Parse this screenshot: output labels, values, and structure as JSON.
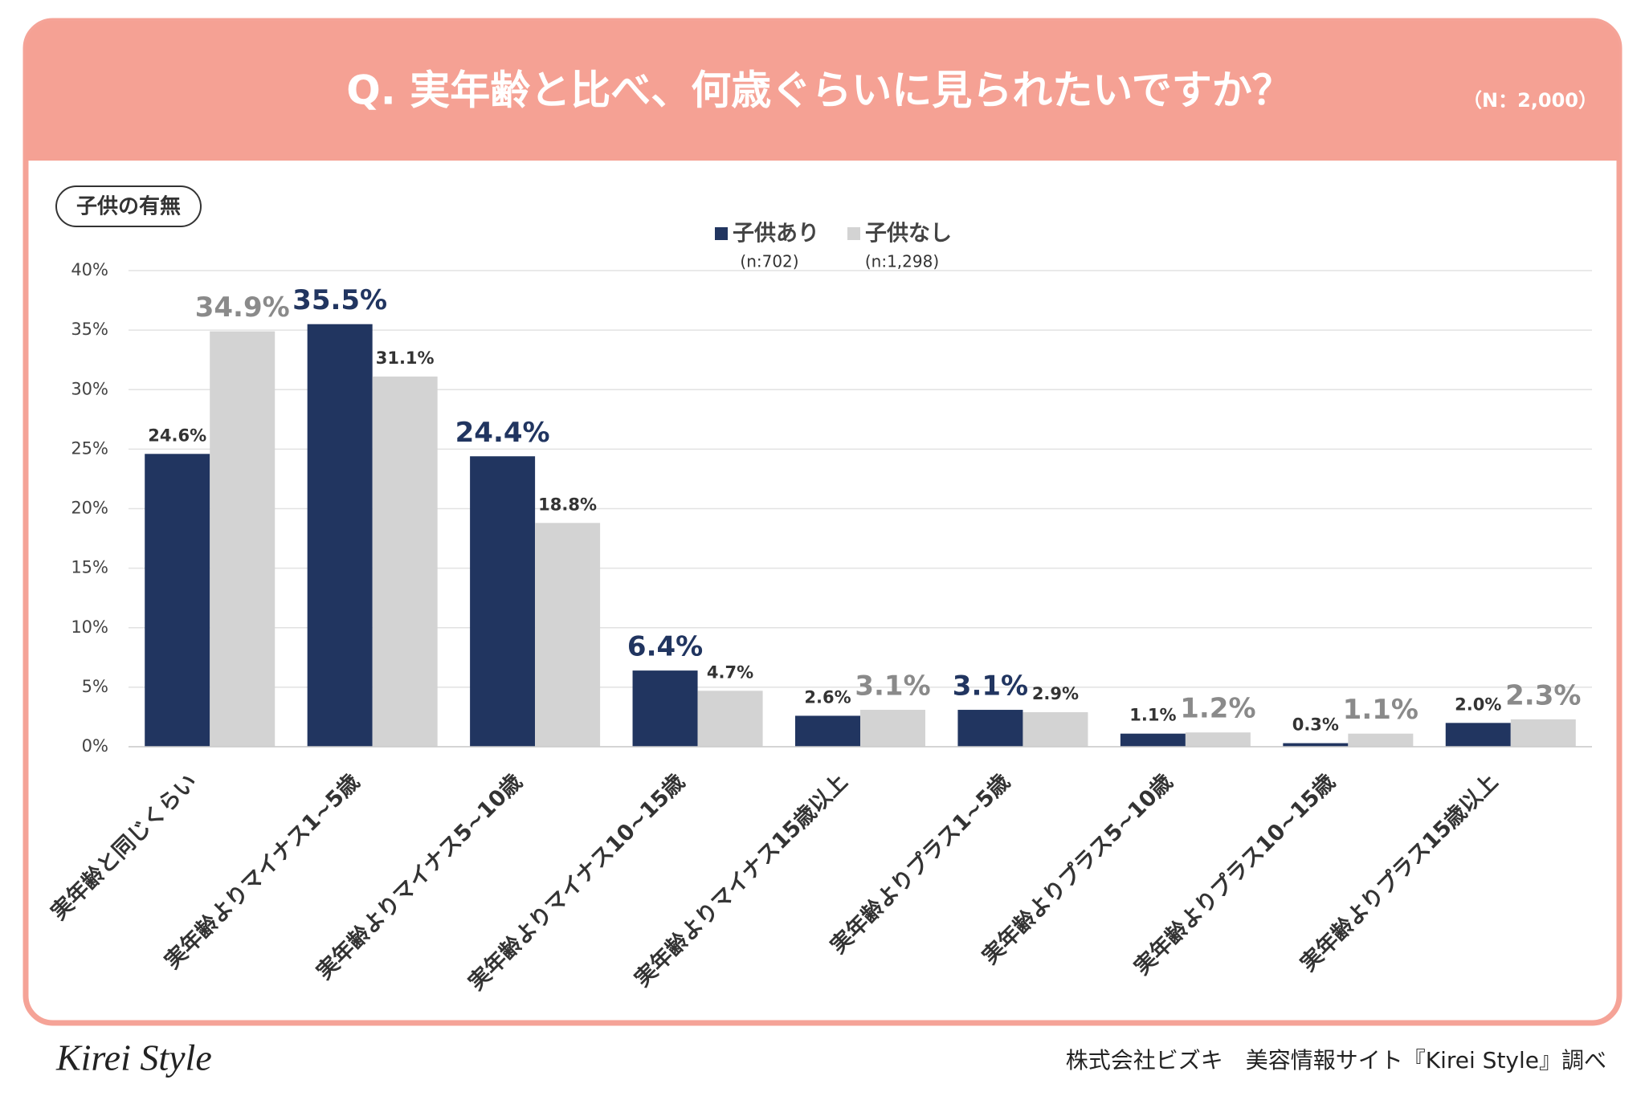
{
  "chart_data": {
    "type": "bar",
    "title": "Q. 実年齢と比べ、何歳ぐらいに見られたいですか？",
    "sample_size": "（N：2,000）",
    "badge": "子供の有無",
    "categories": [
      "実年齢と同じくらい",
      "実年齢よりマイナス1~5歳",
      "実年齢よりマイナス5~10歳",
      "実年齢よりマイナス10~15歳",
      "実年齢よりマイナス15歳以上",
      "実年齢よりプラス1~5歳",
      "実年齢よりプラス5~10歳",
      "実年齢よりプラス10~15歳",
      "実年齢よりプラス15歳以上"
    ],
    "series": [
      {
        "name": "子供あり",
        "note": "(n:702)",
        "color": "#213560",
        "values": [
          24.6,
          35.5,
          24.4,
          6.4,
          2.6,
          3.1,
          1.1,
          0.3,
          2.0
        ],
        "value_labels": [
          "24.6%",
          "35.5%",
          "24.4%",
          "6.4%",
          "2.6%",
          "3.1%",
          "1.1%",
          "0.3%",
          "2.0%"
        ]
      },
      {
        "name": "子供なし",
        "note": "(n:1,298)",
        "color": "#d3d3d3",
        "values": [
          34.9,
          31.1,
          18.8,
          4.7,
          3.1,
          2.9,
          1.2,
          1.1,
          2.3
        ],
        "value_labels": [
          "34.9%",
          "31.1%",
          "18.8%",
          "4.7%",
          "3.1%",
          "2.9%",
          "1.2%",
          "1.1%",
          "2.3%"
        ]
      }
    ],
    "ylim": [
      0,
      40
    ],
    "yticks": [
      {
        "value": 0,
        "label": "0%"
      },
      {
        "value": 5,
        "label": "5%"
      },
      {
        "value": 10,
        "label": "10%"
      },
      {
        "value": 15,
        "label": "15%"
      },
      {
        "value": 20,
        "label": "20%"
      },
      {
        "value": 25,
        "label": "25%"
      },
      {
        "value": 30,
        "label": "30%"
      },
      {
        "value": 35,
        "label": "35%"
      },
      {
        "value": 40,
        "label": "40%"
      }
    ],
    "grid": true,
    "footer": {
      "logo": "Kirei Style",
      "credit": "株式会社ビズキ　美容情報サイト『Kirei Style』調べ"
    }
  }
}
